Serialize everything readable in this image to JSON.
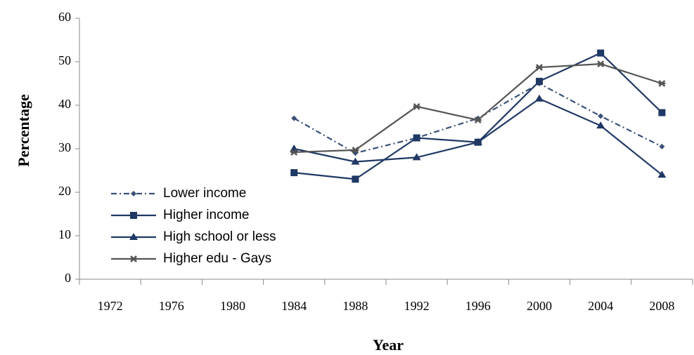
{
  "chart_data": {
    "type": "line",
    "x_label": "Year",
    "y_label": "Percentage",
    "categories": [
      "1972",
      "1976",
      "1980",
      "1984",
      "1988",
      "1992",
      "1996",
      "2000",
      "2004",
      "2008"
    ],
    "ylim": [
      0,
      60
    ],
    "yticks": [
      0,
      10,
      20,
      30,
      40,
      50,
      60
    ],
    "legend": "left",
    "series": [
      {
        "name": "Lower income",
        "color": "#3b5078",
        "line_style": "dashdot",
        "marker": "diamond",
        "values": [
          null,
          null,
          null,
          37,
          29,
          32.5,
          37,
          45,
          37.5,
          30.5
        ]
      },
      {
        "name": "Higher income",
        "color": "#1f3864",
        "line_style": "solid",
        "marker": "square",
        "values": [
          null,
          null,
          null,
          24.5,
          23,
          32.5,
          31.5,
          45.5,
          52,
          38.3
        ]
      },
      {
        "name": "High school or less",
        "color": "#1f3864",
        "line_style": "solid",
        "marker": "triangle",
        "values": [
          null,
          null,
          null,
          30,
          27,
          28,
          31.5,
          41.5,
          35.3,
          24
        ]
      },
      {
        "name": "Higher edu - Gays",
        "color": "#555555",
        "line_style": "solid",
        "marker": "star",
        "values": [
          null,
          null,
          null,
          29.2,
          29.7,
          39.7,
          36.6,
          48.7,
          49.5,
          45
        ]
      }
    ]
  }
}
